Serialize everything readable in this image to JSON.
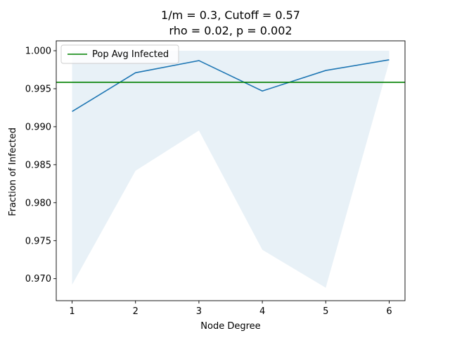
{
  "chart_data": {
    "type": "line",
    "title": "1/m = 0.3, Cutoff = 0.57",
    "subtitle": "rho = 0.02, p = 0.002",
    "xlabel": "Node Degree",
    "ylabel": "Fraction of Infected",
    "xlim": [
      0.75,
      6.25
    ],
    "ylim": [
      0.9671,
      1.0013
    ],
    "x_ticks": [
      1,
      2,
      3,
      4,
      5,
      6
    ],
    "y_ticks": [
      0.97,
      0.975,
      0.98,
      0.985,
      0.99,
      0.995,
      1.0
    ],
    "y_tick_labels": [
      "0.970",
      "0.975",
      "0.980",
      "0.985",
      "0.990",
      "0.995",
      "1.000"
    ],
    "grid": false,
    "legend_position": "top-left",
    "series": [
      {
        "x": [
          1,
          2,
          3,
          4,
          5,
          6
        ],
        "y": [
          0.992,
          0.9971,
          0.9987,
          0.9947,
          0.9974,
          0.9988
        ],
        "color": "#1f77b4"
      }
    ],
    "band": {
      "x": [
        1,
        2,
        3,
        4,
        5,
        6
      ],
      "lower": [
        0.9692,
        0.9842,
        0.9895,
        0.9738,
        0.9688,
        0.9985
      ],
      "upper": [
        1.0,
        1.0,
        1.0,
        1.0,
        1.0,
        1.0
      ],
      "color": "#1f77b4",
      "opacity": 0.1
    },
    "hline": {
      "name": "Pop Avg Infected",
      "y": 0.99585,
      "color": "#008000"
    }
  }
}
